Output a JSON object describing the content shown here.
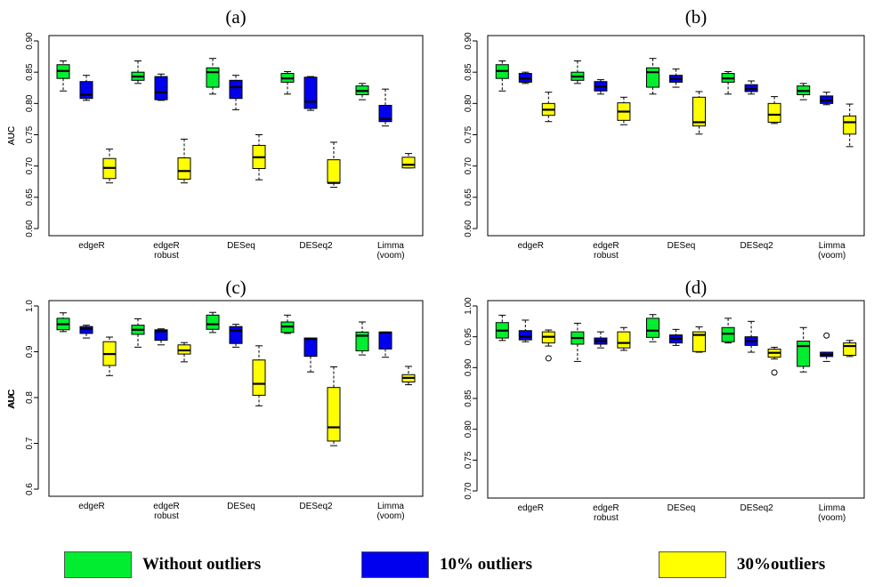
{
  "chart_data": [
    {
      "type": "box",
      "title": "(a)",
      "ylabel": "AUC",
      "ylim": [
        0.6,
        0.9
      ],
      "yticks": [
        "0.60",
        "0.65",
        "0.70",
        "0.75",
        "0.80",
        "0.85",
        "0.90"
      ],
      "categories": [
        "edgeR",
        "edgeR robust",
        "DESeq",
        "DESeq2",
        "Limma (voom)"
      ],
      "series": [
        {
          "name": "Without outliers",
          "boxes": [
            {
              "min": 0.82,
              "q1": 0.84,
              "median": 0.852,
              "q3": 0.862,
              "max": 0.868
            },
            {
              "min": 0.832,
              "q1": 0.837,
              "median": 0.843,
              "q3": 0.85,
              "max": 0.868
            },
            {
              "min": 0.815,
              "q1": 0.826,
              "median": 0.85,
              "q3": 0.857,
              "max": 0.872
            },
            {
              "min": 0.815,
              "q1": 0.834,
              "median": 0.84,
              "q3": 0.848,
              "max": 0.851
            },
            {
              "min": 0.806,
              "q1": 0.814,
              "median": 0.82,
              "q3": 0.828,
              "max": 0.832
            }
          ]
        },
        {
          "name": "10% outliers",
          "boxes": [
            {
              "min": 0.805,
              "q1": 0.808,
              "median": 0.814,
              "q3": 0.835,
              "max": 0.845
            },
            {
              "min": 0.805,
              "q1": 0.806,
              "median": 0.818,
              "q3": 0.843,
              "max": 0.847
            },
            {
              "min": 0.79,
              "q1": 0.808,
              "median": 0.826,
              "q3": 0.837,
              "max": 0.845
            },
            {
              "min": 0.789,
              "q1": 0.792,
              "median": 0.803,
              "q3": 0.842,
              "max": 0.843
            },
            {
              "min": 0.764,
              "q1": 0.771,
              "median": 0.775,
              "q3": 0.797,
              "max": 0.823
            }
          ]
        },
        {
          "name": "30%outliers",
          "boxes": [
            {
              "min": 0.673,
              "q1": 0.68,
              "median": 0.697,
              "q3": 0.712,
              "max": 0.727
            },
            {
              "min": 0.673,
              "q1": 0.679,
              "median": 0.692,
              "q3": 0.713,
              "max": 0.743
            },
            {
              "min": 0.678,
              "q1": 0.696,
              "median": 0.714,
              "q3": 0.733,
              "max": 0.75
            },
            {
              "min": 0.666,
              "q1": 0.673,
              "median": 0.673,
              "q3": 0.71,
              "max": 0.738
            },
            {
              "min": 0.697,
              "q1": 0.697,
              "median": 0.702,
              "q3": 0.714,
              "max": 0.72
            }
          ]
        }
      ],
      "outliers": []
    },
    {
      "type": "box",
      "title": "(b)",
      "ylabel": "AUC",
      "ylim": [
        0.6,
        0.9
      ],
      "yticks": [
        "0.60",
        "0.65",
        "0.70",
        "0.75",
        "0.80",
        "0.85",
        "0.90"
      ],
      "categories": [
        "edgeR",
        "edgeR robust",
        "DESeq",
        "DESeq2",
        "Limma (voom)"
      ],
      "series": [
        {
          "name": "Without outliers",
          "boxes": [
            {
              "min": 0.82,
              "q1": 0.84,
              "median": 0.852,
              "q3": 0.862,
              "max": 0.868
            },
            {
              "min": 0.832,
              "q1": 0.837,
              "median": 0.843,
              "q3": 0.85,
              "max": 0.868
            },
            {
              "min": 0.815,
              "q1": 0.826,
              "median": 0.85,
              "q3": 0.857,
              "max": 0.872
            },
            {
              "min": 0.815,
              "q1": 0.834,
              "median": 0.84,
              "q3": 0.848,
              "max": 0.851
            },
            {
              "min": 0.806,
              "q1": 0.814,
              "median": 0.82,
              "q3": 0.828,
              "max": 0.832
            }
          ]
        },
        {
          "name": "10% outliers",
          "boxes": [
            {
              "min": 0.832,
              "q1": 0.834,
              "median": 0.84,
              "q3": 0.848,
              "max": 0.85
            },
            {
              "min": 0.815,
              "q1": 0.82,
              "median": 0.827,
              "q3": 0.835,
              "max": 0.838
            },
            {
              "min": 0.826,
              "q1": 0.834,
              "median": 0.839,
              "q3": 0.845,
              "max": 0.855
            },
            {
              "min": 0.815,
              "q1": 0.819,
              "median": 0.823,
              "q3": 0.83,
              "max": 0.836
            },
            {
              "min": 0.798,
              "q1": 0.8,
              "median": 0.805,
              "q3": 0.812,
              "max": 0.818
            }
          ]
        },
        {
          "name": "30%outliers",
          "boxes": [
            {
              "min": 0.771,
              "q1": 0.781,
              "median": 0.79,
              "q3": 0.8,
              "max": 0.818
            },
            {
              "min": 0.766,
              "q1": 0.773,
              "median": 0.787,
              "q3": 0.801,
              "max": 0.81
            },
            {
              "min": 0.751,
              "q1": 0.764,
              "median": 0.77,
              "q3": 0.81,
              "max": 0.819
            },
            {
              "min": 0.768,
              "q1": 0.77,
              "median": 0.782,
              "q3": 0.8,
              "max": 0.811
            },
            {
              "min": 0.731,
              "q1": 0.751,
              "median": 0.77,
              "q3": 0.78,
              "max": 0.799
            }
          ]
        }
      ],
      "outliers": []
    },
    {
      "type": "box",
      "title": "(c)",
      "ylabel": "AUC",
      "ylim": [
        0.6,
        1.0
      ],
      "yticks": [
        "0.6",
        "0.7",
        "0.8",
        "0.9",
        "1.0"
      ],
      "categories": [
        "edgeR",
        "edgeR robust",
        "DESeq",
        "DESeq2",
        "Limma (voom)"
      ],
      "series": [
        {
          "name": "Without outliers",
          "boxes": [
            {
              "min": 0.944,
              "q1": 0.948,
              "median": 0.96,
              "q3": 0.973,
              "max": 0.985
            },
            {
              "min": 0.91,
              "q1": 0.938,
              "median": 0.948,
              "q3": 0.958,
              "max": 0.972
            },
            {
              "min": 0.942,
              "q1": 0.949,
              "median": 0.96,
              "q3": 0.98,
              "max": 0.986
            },
            {
              "min": 0.94,
              "q1": 0.942,
              "median": 0.955,
              "q3": 0.965,
              "max": 0.98
            },
            {
              "min": 0.893,
              "q1": 0.902,
              "median": 0.935,
              "q3": 0.943,
              "max": 0.965
            }
          ]
        },
        {
          "name": "10% outliers",
          "boxes": [
            {
              "min": 0.93,
              "q1": 0.94,
              "median": 0.95,
              "q3": 0.955,
              "max": 0.958
            },
            {
              "min": 0.915,
              "q1": 0.925,
              "median": 0.945,
              "q3": 0.948,
              "max": 0.95
            },
            {
              "min": 0.91,
              "q1": 0.918,
              "median": 0.946,
              "q3": 0.955,
              "max": 0.96
            },
            {
              "min": 0.856,
              "q1": 0.89,
              "median": 0.928,
              "q3": 0.93,
              "max": 0.93
            },
            {
              "min": 0.888,
              "q1": 0.906,
              "median": 0.942,
              "q3": 0.943,
              "max": 0.943
            }
          ]
        },
        {
          "name": "30%outliers",
          "boxes": [
            {
              "min": 0.848,
              "q1": 0.87,
              "median": 0.895,
              "q3": 0.922,
              "max": 0.932
            },
            {
              "min": 0.878,
              "q1": 0.895,
              "median": 0.903,
              "q3": 0.915,
              "max": 0.92
            },
            {
              "min": 0.782,
              "q1": 0.805,
              "median": 0.83,
              "q3": 0.882,
              "max": 0.913
            },
            {
              "min": 0.695,
              "q1": 0.705,
              "median": 0.735,
              "q3": 0.822,
              "max": 0.867
            },
            {
              "min": 0.828,
              "q1": 0.834,
              "median": 0.843,
              "q3": 0.85,
              "max": 0.868
            }
          ]
        }
      ],
      "outliers": []
    },
    {
      "type": "box",
      "title": "(d)",
      "ylabel": "AUC",
      "ylim": [
        0.7,
        1.0
      ],
      "yticks": [
        "0.70",
        "0.75",
        "0.80",
        "0.85",
        "0.90",
        "0.95",
        "1.00"
      ],
      "categories": [
        "edgeR",
        "edgeR robust",
        "DESeq",
        "DESeq2",
        "Limma (voom)"
      ],
      "series": [
        {
          "name": "Without outliers",
          "boxes": [
            {
              "min": 0.944,
              "q1": 0.948,
              "median": 0.96,
              "q3": 0.973,
              "max": 0.985
            },
            {
              "min": 0.91,
              "q1": 0.938,
              "median": 0.948,
              "q3": 0.958,
              "max": 0.972
            },
            {
              "min": 0.942,
              "q1": 0.949,
              "median": 0.96,
              "q3": 0.98,
              "max": 0.986
            },
            {
              "min": 0.94,
              "q1": 0.942,
              "median": 0.955,
              "q3": 0.965,
              "max": 0.98
            },
            {
              "min": 0.893,
              "q1": 0.902,
              "median": 0.935,
              "q3": 0.943,
              "max": 0.965
            }
          ]
        },
        {
          "name": "10% outliers",
          "boxes": [
            {
              "min": 0.942,
              "q1": 0.945,
              "median": 0.95,
              "q3": 0.96,
              "max": 0.977
            },
            {
              "min": 0.932,
              "q1": 0.938,
              "median": 0.943,
              "q3": 0.948,
              "max": 0.958
            },
            {
              "min": 0.936,
              "q1": 0.94,
              "median": 0.947,
              "q3": 0.953,
              "max": 0.962
            },
            {
              "min": 0.925,
              "q1": 0.936,
              "median": 0.943,
              "q3": 0.95,
              "max": 0.975
            },
            {
              "min": 0.91,
              "q1": 0.918,
              "median": 0.921,
              "q3": 0.925,
              "max": 0.925
            }
          ]
        },
        {
          "name": "30%outliers",
          "boxes": [
            {
              "min": 0.935,
              "q1": 0.94,
              "median": 0.95,
              "q3": 0.958,
              "max": 0.961
            },
            {
              "min": 0.928,
              "q1": 0.932,
              "median": 0.94,
              "q3": 0.958,
              "max": 0.965
            },
            {
              "min": 0.925,
              "q1": 0.926,
              "median": 0.953,
              "q3": 0.958,
              "max": 0.966
            },
            {
              "min": 0.914,
              "q1": 0.917,
              "median": 0.924,
              "q3": 0.93,
              "max": 0.933
            },
            {
              "min": 0.918,
              "q1": 0.92,
              "median": 0.935,
              "q3": 0.94,
              "max": 0.944
            }
          ]
        }
      ],
      "outliers": [
        {
          "category": 0,
          "series": 2,
          "value": 0.915
        },
        {
          "category": 3,
          "series": 2,
          "value": 0.892
        },
        {
          "category": 4,
          "series": 1,
          "value": 0.952
        }
      ]
    }
  ],
  "colors": {
    "Without outliers": "#00ee2f",
    "10% outliers": "#0000ee",
    "30%outliers": "#ffff00"
  },
  "legend": [
    {
      "label": "Without outliers",
      "color": "#00ee2f"
    },
    {
      "label": "10% outliers",
      "color": "#0000ee"
    },
    {
      "label": "30%outliers",
      "color": "#ffff00"
    }
  ]
}
